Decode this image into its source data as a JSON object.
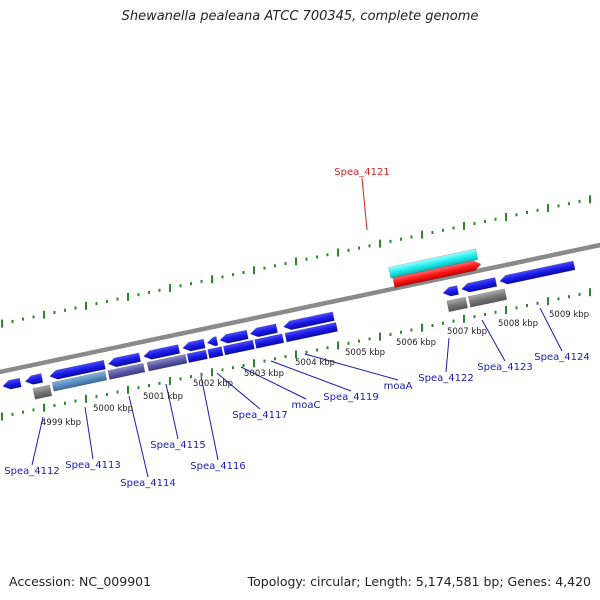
{
  "title": "Shewanella pealeana ATCC 700345, complete genome",
  "footer": {
    "accession": "Accession: NC_009901",
    "summary": "Topology: circular; Length: 5,174,581 bp; Genes: 4,420"
  },
  "kbp_labels": [
    "4999 kbp",
    "5000 kbp",
    "5001 kbp",
    "5002 kbp",
    "5003 kbp",
    "5004 kbp",
    "5005 kbp",
    "5006 kbp",
    "5007 kbp",
    "5008 kbp",
    "5009 kbp"
  ],
  "gene_labels": [
    "Spea_4112",
    "Spea_4113",
    "Spea_4114",
    "Spea_4115",
    "Spea_4116",
    "Spea_4117",
    "moaC",
    "Spea_4119",
    "moaA",
    "Spea_4121",
    "Spea_4122",
    "Spea_4123",
    "Spea_4124"
  ],
  "colors": {
    "cds": "#1a1ae6",
    "highlight_gene": "#ff1a1a",
    "highlight_match": "#1ae6e6",
    "label": "#1a1ab4",
    "highlight_label": "#d42020",
    "ticks": "#2a8a2a",
    "backbone": "#888888"
  }
}
